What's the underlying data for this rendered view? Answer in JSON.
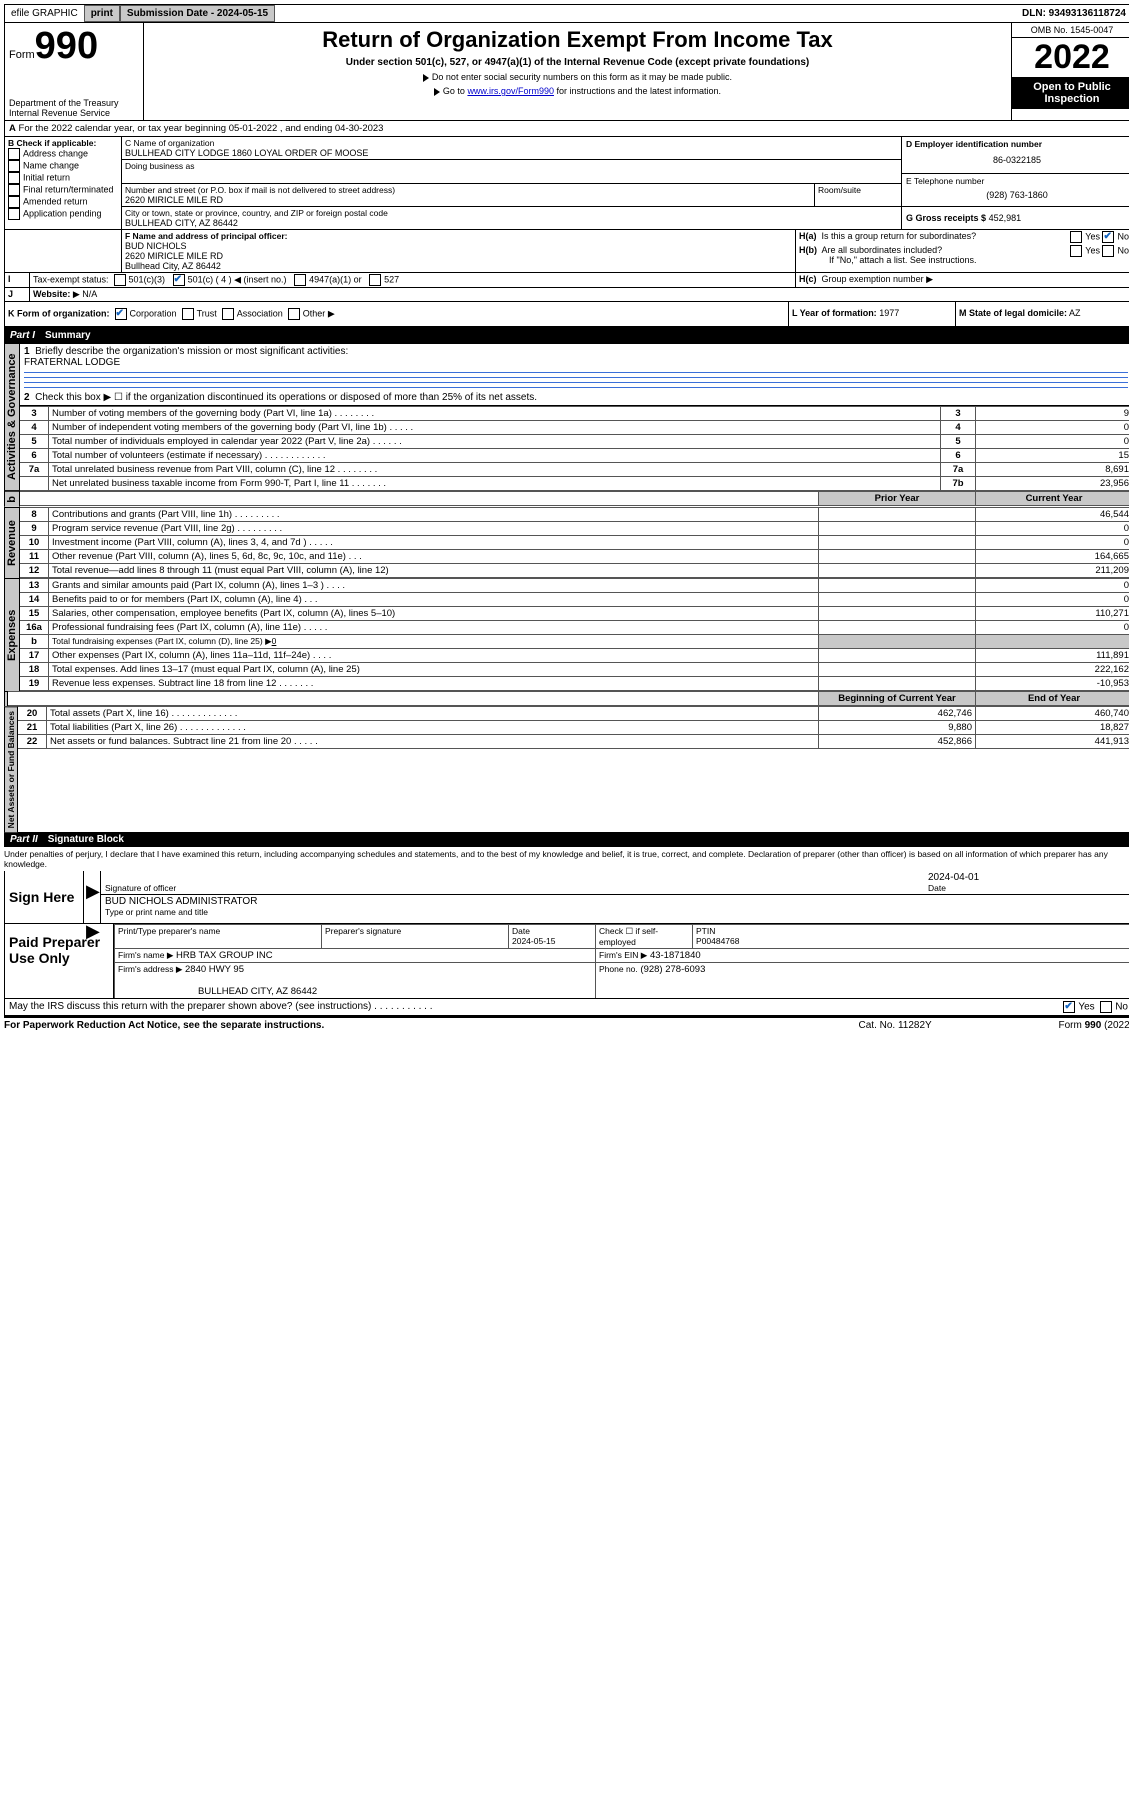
{
  "topbar": {
    "efile": "efile GRAPHIC",
    "print": "print",
    "subdate_lbl": "Submission Date - 2024-05-15",
    "dln": "DLN: 93493136118724"
  },
  "header": {
    "form_prefix": "Form",
    "form_num": "990",
    "dept": "Department of the Treasury",
    "irs": "Internal Revenue Service",
    "title": "Return of Organization Exempt From Income Tax",
    "sub1": "Under section 501(c), 527, or 4947(a)(1) of the Internal Revenue Code (except private foundations)",
    "sub2": "Do not enter social security numbers on this form as it may be made public.",
    "sub3_pre": "Go to ",
    "sub3_link": "www.irs.gov/Form990",
    "sub3_post": " for instructions and the latest information.",
    "omb": "OMB No. 1545-0047",
    "year": "2022",
    "open": "Open to Public Inspection"
  },
  "A": {
    "line": "For the 2022 calendar year, or tax year beginning 05-01-2022   , and ending 04-30-2023",
    "A_lbl": "A"
  },
  "B": {
    "lbl": "B Check if applicable:",
    "opts": [
      "Address change",
      "Name change",
      "Initial return",
      "Final return/terminated",
      "Amended return",
      "Application pending"
    ]
  },
  "C": {
    "name_lbl": "C Name of organization",
    "name": "BULLHEAD CITY LODGE 1860 LOYAL ORDER OF MOOSE",
    "dba": "Doing business as",
    "street_lbl": "Number and street (or P.O. box if mail is not delivered to street address)",
    "room_lbl": "Room/suite",
    "street": "2620 MIRICLE MILE RD",
    "city_lbl": "City or town, state or province, country, and ZIP or foreign postal code",
    "city": "BULLHEAD CITY, AZ  86442"
  },
  "D": {
    "lbl": "D Employer identification number",
    "val": "86-0322185"
  },
  "E": {
    "lbl": "E Telephone number",
    "val": "(928) 763-1860"
  },
  "G": {
    "lbl": "G Gross receipts $",
    "val": "452,981"
  },
  "F": {
    "lbl": "F Name and address of principal officer:",
    "line1": "BUD NICHOLS",
    "line2": "2620 MIRICLE MILE RD",
    "line3": "Bullhead City, AZ  86442"
  },
  "H": {
    "a": "Is this a group return for subordinates?",
    "b": "Are all subordinates included?",
    "b_note": "If \"No,\" attach a list. See instructions.",
    "c": "Group exemption number",
    "yes": "Yes",
    "no": "No"
  },
  "I": {
    "lbl": "Tax-exempt status:",
    "o1": "501(c)(3)",
    "o2a": "501(c) ( 4 )",
    "o2b": "(insert no.)",
    "o3": "4947(a)(1) or",
    "o4": "527"
  },
  "J": {
    "lbl": "Website:",
    "val": "N/A"
  },
  "K": {
    "lbl": "K Form of organization:",
    "opts": [
      "Corporation",
      "Trust",
      "Association",
      "Other"
    ]
  },
  "L": {
    "lbl": "L Year of formation:",
    "val": "1977"
  },
  "M": {
    "lbl": "M State of legal domicile:",
    "val": "AZ"
  },
  "part1": {
    "hdr": "Part I",
    "title": "Summary",
    "l1_lbl": "Briefly describe the organization's mission or most significant activities:",
    "l1_val": "FRATERNAL LODGE",
    "l2": "Check this box ▶ ☐  if the organization discontinued its operations or disposed of more than 25% of its net assets.",
    "rows_ag": [
      {
        "n": "3",
        "t": "Number of voting members of the governing body (Part VI, line 1a)   .    .    .    .    .    .    .    .",
        "b": "3",
        "v": "9"
      },
      {
        "n": "4",
        "t": "Number of independent voting members of the governing body (Part VI, line 1b)   .    .    .    .    .",
        "b": "4",
        "v": "0"
      },
      {
        "n": "5",
        "t": "Total number of individuals employed in calendar year 2022 (Part V, line 2a)   .    .    .    .    .    .",
        "b": "5",
        "v": "0"
      },
      {
        "n": "6",
        "t": "Total number of volunteers (estimate if necessary)   .    .    .    .    .    .    .    .    .    .    .    .",
        "b": "6",
        "v": "15"
      },
      {
        "n": "7a",
        "t": "Total unrelated business revenue from Part VIII, column (C), line 12   .    .    .    .    .    .    .    .",
        "b": "7a",
        "v": "8,691"
      },
      {
        "n": "",
        "t": "Net unrelated business taxable income from Form 990-T, Part I, line 11   .    .    .    .    .    .    .",
        "b": "7b",
        "v": "23,956"
      }
    ],
    "tbl_hdr": {
      "py": "Prior Year",
      "cy": "Current Year"
    },
    "rows_rev": [
      {
        "n": "8",
        "t": "Contributions and grants (Part VIII, line 1h)   .    .    .    .    .    .    .    .    .",
        "py": "",
        "cy": "46,544"
      },
      {
        "n": "9",
        "t": "Program service revenue (Part VIII, line 2g)   .    .    .    .    .    .    .    .    .",
        "py": "",
        "cy": "0"
      },
      {
        "n": "10",
        "t": "Investment income (Part VIII, column (A), lines 3, 4, and 7d )   .    .    .    .    .",
        "py": "",
        "cy": "0"
      },
      {
        "n": "11",
        "t": "Other revenue (Part VIII, column (A), lines 5, 6d, 8c, 9c, 10c, and 11e)   .    .    .",
        "py": "",
        "cy": "164,665"
      },
      {
        "n": "12",
        "t": "Total revenue—add lines 8 through 11 (must equal Part VIII, column (A), line 12)",
        "py": "",
        "cy": "211,209"
      }
    ],
    "rows_exp": [
      {
        "n": "13",
        "t": "Grants and similar amounts paid (Part IX, column (A), lines 1–3 )   .    .    .    .",
        "py": "",
        "cy": "0"
      },
      {
        "n": "14",
        "t": "Benefits paid to or for members (Part IX, column (A), line 4)   .    .    .",
        "py": "",
        "cy": "0"
      },
      {
        "n": "15",
        "t": "Salaries, other compensation, employee benefits (Part IX, column (A), lines 5–10)",
        "py": "",
        "cy": "110,271"
      },
      {
        "n": "16a",
        "t": "Professional fundraising fees (Part IX, column (A), line 11e)   .    .    .    .    .",
        "py": "",
        "cy": "0"
      },
      {
        "n": "b",
        "t": "Total fundraising expenses (Part IX, column (D), line 25) ▶0",
        "py": "shade",
        "cy": "shade"
      },
      {
        "n": "17",
        "t": "Other expenses (Part IX, column (A), lines 11a–11d, 11f–24e)   .    .    .    .",
        "py": "",
        "cy": "111,891"
      },
      {
        "n": "18",
        "t": "Total expenses. Add lines 13–17 (must equal Part IX, column (A), line 25)",
        "py": "",
        "cy": "222,162"
      },
      {
        "n": "19",
        "t": "Revenue less expenses. Subtract line 18 from line 12   .    .    .    .    .    .    .",
        "py": "",
        "cy": "-10,953"
      }
    ],
    "tbl_hdr2": {
      "py": "Beginning of Current Year",
      "cy": "End of Year"
    },
    "rows_na": [
      {
        "n": "20",
        "t": "Total assets (Part X, line 16)   .    .    .    .    .    .    .    .    .    .    .    .    .",
        "py": "462,746",
        "cy": "460,740"
      },
      {
        "n": "21",
        "t": "Total liabilities (Part X, line 26)   .    .    .    .    .    .    .    .    .    .    .    .    .",
        "py": "9,880",
        "cy": "18,827"
      },
      {
        "n": "22",
        "t": "Net assets or fund balances. Subtract line 21 from line 20   .    .    .    .    .",
        "py": "452,866",
        "cy": "441,913"
      }
    ],
    "tabs": {
      "ag": "Activities & Governance",
      "rev": "Revenue",
      "exp": "Expenses",
      "na": "Net Assets or Fund Balances"
    }
  },
  "part2": {
    "hdr": "Part II",
    "title": "Signature Block",
    "decl": "Under penalties of perjury, I declare that I have examined this return, including accompanying schedules and statements, and to the best of my knowledge and belief, it is true, correct, and complete. Declaration of preparer (other than officer) is based on all information of which preparer has any knowledge.",
    "sign": "Sign Here",
    "sig_lbl": "Signature of officer",
    "date_lbl": "Date",
    "date_val": "2024-04-01",
    "name_val": "BUD NICHOLS  ADMINISTRATOR",
    "name_lbl": "Type or print name and title",
    "paid": "Paid Preparer Use Only",
    "pp_name": "Print/Type preparer's name",
    "pp_sig": "Preparer's signature",
    "pp_date_lbl": "Date",
    "pp_date": "2024-05-15",
    "pp_check": "Check ☐ if self-employed",
    "ptin_lbl": "PTIN",
    "ptin": "P00484768",
    "firm_lbl": "Firm's name   ▶",
    "firm": "HRB TAX GROUP INC",
    "ein_lbl": "Firm's EIN ▶",
    "ein": "43-1871840",
    "addr_lbl": "Firm's address ▶",
    "addr1": "2840 HWY 95",
    "addr2": "BULLHEAD CITY, AZ  86442",
    "phone_lbl": "Phone no.",
    "phone": "(928) 278-6093",
    "discuss": "May the IRS discuss this return with the preparer shown above? (see instructions)   .    .    .    .    .    .    .    .    .    .    .",
    "paperwork": "For Paperwork Reduction Act Notice, see the separate instructions.",
    "cat": "Cat. No. 11282Y",
    "formno": "Form 990 (2022)"
  }
}
